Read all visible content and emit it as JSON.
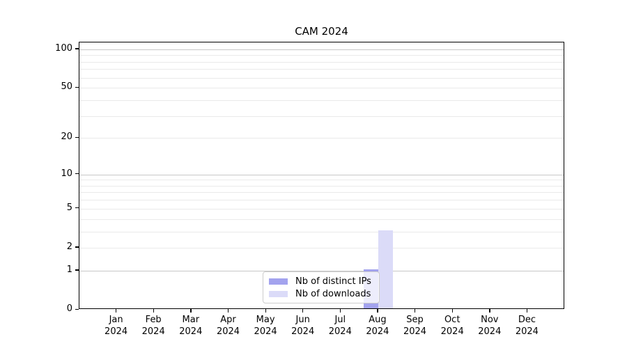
{
  "chart_data": {
    "type": "bar",
    "title": "CAM 2024",
    "xlabel": "",
    "ylabel": "",
    "yscale": "log1p",
    "ylim": [
      0,
      113
    ],
    "grid": {
      "major": [
        1,
        10,
        100
      ],
      "minor": [
        2,
        3,
        4,
        5,
        6,
        7,
        8,
        9,
        20,
        30,
        40,
        50,
        60,
        70,
        80,
        90
      ]
    },
    "ytick_values": [
      0,
      1,
      2,
      5,
      10,
      20,
      50,
      100
    ],
    "ytick_labels": [
      "0",
      "1",
      "2",
      "5",
      "10",
      "20",
      "50",
      "100"
    ],
    "months": [
      "Jan",
      "Feb",
      "Mar",
      "Apr",
      "May",
      "Jun",
      "Jul",
      "Aug",
      "Sep",
      "Oct",
      "Nov",
      "Dec"
    ],
    "year_label": "2024",
    "categories": [
      "Jan 2024",
      "Feb 2024",
      "Mar 2024",
      "Apr 2024",
      "May 2024",
      "Jun 2024",
      "Jul 2024",
      "Aug 2024",
      "Sep 2024",
      "Oct 2024",
      "Nov 2024",
      "Dec 2024"
    ],
    "series": [
      {
        "name": "Nb of distinct IPs",
        "color": "#a3a3ee",
        "values": [
          0,
          0,
          0,
          0,
          0,
          0,
          0,
          1,
          0,
          0,
          0,
          0
        ]
      },
      {
        "name": "Nb of downloads",
        "color": "#dbdbf8",
        "values": [
          0,
          0,
          0,
          0,
          0,
          0,
          0,
          3,
          0,
          0,
          0,
          0
        ]
      }
    ],
    "legend_position": "lower-center-inside"
  },
  "colors": {
    "grid_major": "#c8c8c8",
    "grid_minor": "#eaeaea",
    "legend_border": "#cccccc",
    "axis": "#000000"
  }
}
